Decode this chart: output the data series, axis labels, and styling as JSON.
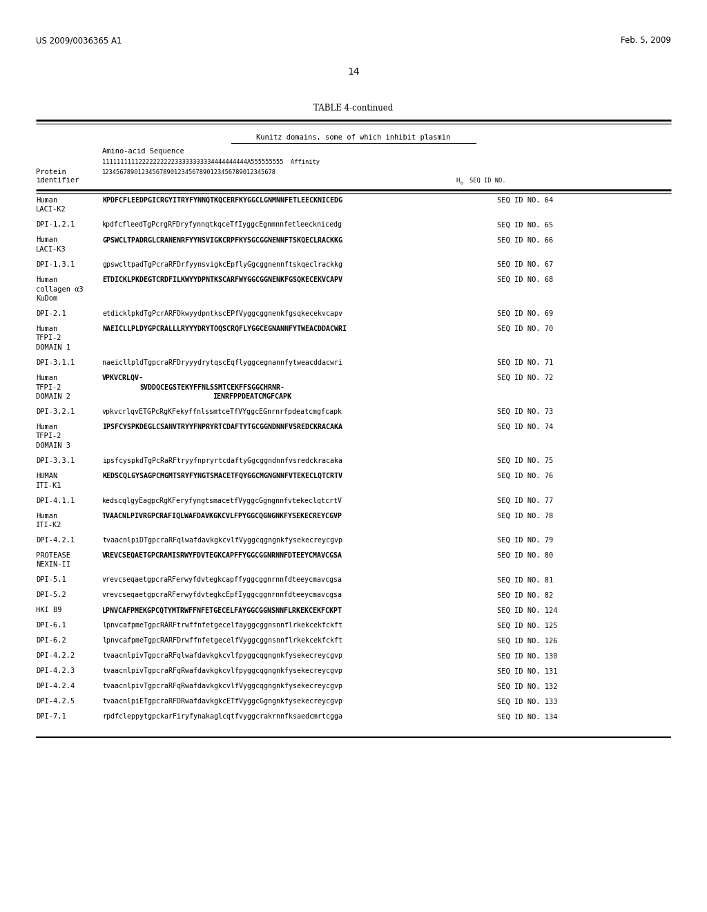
{
  "header_left": "US 2009/0036365 A1",
  "header_right": "Feb. 5, 2009",
  "page_number": "14",
  "table_title": "TABLE 4-continued",
  "subtitle": "Kunitz domains, some of which inhibit plasmin",
  "rows": [
    {
      "protein": "Human\nLACI-K2",
      "sequence": "KPDFCFLEEDPGICRGYITRYFYNNQTKQCERFKYGGCLGNMNNFETLEECKNICEDG",
      "seqid": "SEQ ID NO. 64",
      "bold": true,
      "lines": 2
    },
    {
      "protein": "DPI-1.2.1",
      "sequence": "kpdfcfleedTgPcrgRFDryfynnqtkqceTfIyggcEgnmnnfetleecknicedg",
      "seqid": "SEQ ID NO. 65",
      "bold": false,
      "lines": 1
    },
    {
      "protein": "Human\nLACI-K3",
      "sequence": "GPSWCLTPADRGLCRANENRFYYNSVIGKCRPFKYSGCGGNENNFTSKQECLRACKKG",
      "seqid": "SEQ ID NO. 66",
      "bold": true,
      "lines": 2
    },
    {
      "protein": "DPI-1.3.1",
      "sequence": "gpswcltpadTgPcraRFDrfyynsvigkcEpflyGgcggnennftskqeclrackkg",
      "seqid": "SEQ ID NO. 67",
      "bold": false,
      "lines": 1
    },
    {
      "protein": "Human\ncollagen α3\nKuDom",
      "sequence": "ETDICKLPKDEGTCRDFILKWYYDPNTKSCARFWYGGCGGNENKFGSQKECEKVCAPV",
      "seqid": "SEQ ID NO. 68",
      "bold": true,
      "lines": 3
    },
    {
      "protein": "DPI-2.1",
      "sequence": "etdicklpkdTgPcrARFDkwyydpntkscEPfVyggcggnenkfgsqkecekvcapv",
      "seqid": "SEQ ID NO. 69",
      "bold": false,
      "lines": 1
    },
    {
      "protein": "Human\nTFPI-2\nDOMAIN 1",
      "sequence": "NAEICLLPLDYGPCRALLLRYYYDRYTOQSCRQFLYGGCEGNANNFYTWEACDDACWRI",
      "seqid": "SEQ ID NO. 70",
      "bold": true,
      "lines": 3
    },
    {
      "protein": "DPI-3.1.1",
      "sequence": "naeicllpldTgpcraRFDryyydrytqscEqflyggcegnannfytweacddacwri",
      "seqid": "SEQ ID NO. 71",
      "bold": false,
      "lines": 1
    },
    {
      "protein": "Human\nTFPI-2\nDOMAIN 2",
      "sequence": "VPKVCRLQV-",
      "seq2": "SVDDQCEGSTEKYFFNLSSMTCEKFFSGGCHRNR-",
      "seq3": "IENRFPPDEATCMGFCAPK",
      "seqid": "SEQ ID NO. 72",
      "bold": true,
      "lines": 3,
      "multiline_seq": true
    },
    {
      "protein": "DPI-3.2.1",
      "sequence": "vpkvcrlqvETGPcRgKFekyffnlssmtceTfVYggcEGnrnrfpdeatcmgfcapk",
      "seqid": "SEQ ID NO. 73",
      "bold": false,
      "lines": 1
    },
    {
      "protein": "Human\nTFPI-2\nDOMAIN 3",
      "sequence": "IPSFCYSPKDEGLCSANVTRYYFNPRYRTCDAFTYTGCGGNDNNFVSREDCKRACAKA",
      "seqid": "SEQ ID NO. 74",
      "bold": true,
      "lines": 3
    },
    {
      "protein": "DPI-3.3.1",
      "sequence": "ipsfcyspkdTgPcRaRFtryyfnpryrtcdaftyGgcggndnnfvsredckracaka",
      "seqid": "SEQ ID NO. 75",
      "bold": false,
      "lines": 1
    },
    {
      "protein": "HUMAN\nITI-K1",
      "sequence": "KEDSCQLGYSAGPCMGMTSRYFYNGTSMACETFQYGGCMGNGNNFVTEKECLQTCRTV",
      "seqid": "SEQ ID NO. 76",
      "bold": true,
      "lines": 2
    },
    {
      "protein": "DPI-4.1.1",
      "sequence": "kedscqlgyEagpcRgKFeryfyngtsmacetfVyggcGgngnnfvtekeclqtcrtV",
      "seqid": "SEQ ID NO. 77",
      "bold": false,
      "lines": 1
    },
    {
      "protein": "Human\nITI-K2",
      "sequence": "TVAACNLPIVRGPCRAFIQLWAFDAVKGKCVLFPYGGCQGNGNKFYSEKECREYCGVP",
      "seqid": "SEQ ID NO. 78",
      "bold": true,
      "lines": 2
    },
    {
      "protein": "DPI-4.2.1",
      "sequence": "tvaacnlpiDTgpcraRFqlwafdavkgkcvlfVyggcqgngnkfysekecreycgvp",
      "seqid": "SEQ ID NO. 79",
      "bold": false,
      "lines": 1
    },
    {
      "protein": "PROTEASE\nNEXIN-II",
      "sequence": "VREVCSEQAETGPCRAMISRWYFDVTEGKCAPFFYGGCGGNRNNFDTEEYCMAVCGSA",
      "seqid": "SEQ ID NO. 80",
      "bold": true,
      "lines": 2
    },
    {
      "protein": "DPI-5.1",
      "sequence": "vrevcseqaetgpcraRFerwyfdvtegkcapffyggcggnrnnfdteeycmavcgsa",
      "seqid": "SEQ ID NO. 81",
      "bold": false,
      "lines": 1
    },
    {
      "protein": "DPI-5.2",
      "sequence": "vrevcseqaetgpcraRFerwyfdvtegkcEpfIyggcggnrnnfdteeycmavcgsa",
      "seqid": "SEQ ID NO. 82",
      "bold": false,
      "lines": 1
    },
    {
      "protein": "HKI B9",
      "sequence": "LPNVCAFPMEKGPCQTYMTRWFFNFETGECELFAYGGCGGNSNNFLRKEKCEKFCKPT",
      "seqid": "SEQ ID NO. 124",
      "bold": true,
      "lines": 1
    },
    {
      "protein": "DPI-6.1",
      "sequence": "lpnvcafpmeTgpcRARFtrwffnfetgecelfayggcggnsnnflrkekcekfckft",
      "seqid": "SEQ ID NO. 125",
      "bold": false,
      "lines": 1
    },
    {
      "protein": "DPI-6.2",
      "sequence": "lpnvcafpmeTgpcRARFDrwffnfetgecelfVyggcggnsnnflrkekcekfckft",
      "seqid": "SEQ ID NO. 126",
      "bold": false,
      "lines": 1
    },
    {
      "protein": "DPI-4.2.2",
      "sequence": "tvaacnlpivTgpcraRFqlwafdavkgkcvlfpyggcqgngnkfysekecreycgvp",
      "seqid": "SEQ ID NO. 130",
      "bold": false,
      "lines": 1
    },
    {
      "protein": "DPI-4.2.3",
      "sequence": "tvaacnlpivTgpcraRFqRwafdavkgkcvlfpyggcqgngnkfysekecreycgvp",
      "seqid": "SEQ ID NO. 131",
      "bold": false,
      "lines": 1
    },
    {
      "protein": "DPI-4.2.4",
      "sequence": "tvaacnlpivTgpcraRFqRwafdavkgkcvlfVyggcqgngnkfysekecreycgvp",
      "seqid": "SEQ ID NO. 132",
      "bold": false,
      "lines": 1
    },
    {
      "protein": "DPI-4.2.5",
      "sequence": "tvaacnlpiETgpcraRFDRwafdavkgkcETfVyggcGgngnkfysekecreycgvp",
      "seqid": "SEQ ID NO. 133",
      "bold": false,
      "lines": 1
    },
    {
      "protein": "DPI-7.1",
      "sequence": "rpdfcleppytgpckarFiryfynakaglcqtfvyggcrakrnnfksaedcmrtcgga",
      "seqid": "SEQ ID NO. 134",
      "bold": false,
      "lines": 1
    }
  ],
  "bg_color": "#ffffff",
  "text_color": "#000000"
}
